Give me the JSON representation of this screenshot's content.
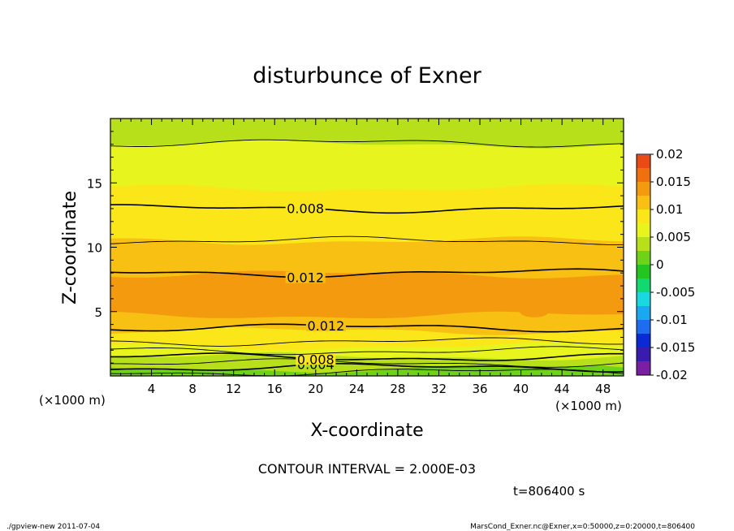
{
  "chart_data": {
    "type": "heatmap",
    "title": "disturbunce of Exner",
    "xlabel": "X-coordinate",
    "ylabel": "Z-coordinate",
    "x_units": "(×1000 m)",
    "x_units_right": "(×1000 m)",
    "z_units": "(×1000 m)",
    "xlim": [
      0,
      50
    ],
    "ylim": [
      0,
      20
    ],
    "x_ticks": [
      "4",
      "8",
      "12",
      "16",
      "20",
      "24",
      "28",
      "32",
      "36",
      "40",
      "44",
      "48"
    ],
    "y_ticks": [
      "5",
      "10",
      "15"
    ],
    "colorbar": {
      "levels": [
        "0.02",
        "0.015",
        "0.01",
        "0.005",
        "0",
        "-0.005",
        "-0.01",
        "-0.015",
        "-0.02"
      ],
      "range": [
        -0.02,
        0.02
      ],
      "step": 0.0025,
      "colors": [
        "#7a1fa2",
        "#3a1bb0",
        "#0a2ad6",
        "#1e6cf0",
        "#1aa8f0",
        "#19d8e0",
        "#12d870",
        "#22c61e",
        "#6ed218",
        "#b8e01a",
        "#e8f41e",
        "#fbe61a",
        "#f8c012",
        "#f49a0e",
        "#f07010",
        "#ec4a14",
        "#f0301e",
        "#f85a5a",
        "#fb8c8c"
      ]
    },
    "bands": [
      {
        "z": 0.0,
        "value": 0.0005
      },
      {
        "z": 0.25,
        "value": 0.0015
      },
      {
        "z": 0.55,
        "value": 0.0025
      },
      {
        "z": 0.85,
        "value": 0.0035
      },
      {
        "z": 1.15,
        "value": 0.0045
      },
      {
        "z": 1.5,
        "value": 0.0055
      },
      {
        "z": 1.9,
        "value": 0.0065
      },
      {
        "z": 2.3,
        "value": 0.0075
      },
      {
        "z": 2.7,
        "value": 0.0085
      },
      {
        "z": 3.1,
        "value": 0.0095
      },
      {
        "z": 3.5,
        "value": 0.0105
      },
      {
        "z": 4.0,
        "value": 0.0115
      },
      {
        "z": 4.7,
        "value": 0.0125
      },
      {
        "z": 7.9,
        "value": 0.0115
      },
      {
        "z": 9.3,
        "value": 0.0105
      },
      {
        "z": 10.5,
        "value": 0.0095
      },
      {
        "z": 11.8,
        "value": 0.0085
      },
      {
        "z": 13.1,
        "value": 0.0075
      },
      {
        "z": 14.6,
        "value": 0.0065
      },
      {
        "z": 16.2,
        "value": 0.0055
      },
      {
        "z": 18.0,
        "value": 0.0045
      }
    ],
    "contour_lines": [
      {
        "z": 0.3,
        "value": 0.002,
        "label": ""
      },
      {
        "z": 0.65,
        "value": 0.004,
        "label": "0.004"
      },
      {
        "z": 1.0,
        "value": 0.006,
        "label": ""
      },
      {
        "z": 1.45,
        "value": 0.008,
        "label": "0.008"
      },
      {
        "z": 1.95,
        "value": 0.01,
        "label": ""
      },
      {
        "z": 2.65,
        "value": 0.01,
        "label": ""
      },
      {
        "z": 3.75,
        "value": 0.012,
        "label": "0.012"
      },
      {
        "z": 8.0,
        "value": 0.012,
        "label": "0.012"
      },
      {
        "z": 10.5,
        "value": 0.01,
        "label": ""
      },
      {
        "z": 13.0,
        "value": 0.008,
        "label": "0.008"
      },
      {
        "z": 18.1,
        "value": 0.004,
        "label": ""
      }
    ],
    "blobs": [
      {
        "x": 1.2,
        "z": 5.5,
        "value": 0.0135
      },
      {
        "x": 20.5,
        "z": 5.2,
        "value": 0.0135
      },
      {
        "x": 30.0,
        "z": 5.1,
        "value": 0.0135
      },
      {
        "x": 41.3,
        "z": 5.0,
        "value": 0.0135
      }
    ]
  },
  "annotations": {
    "contour_interval": "CONTOUR INTERVAL = 2.000E-03",
    "time": "t=806400  s",
    "footer_left": "./gpview-new   2011-07-04",
    "footer_right": "MarsCond_Exner.nc@Exner,x=0:50000,z=0:20000,t=806400"
  }
}
